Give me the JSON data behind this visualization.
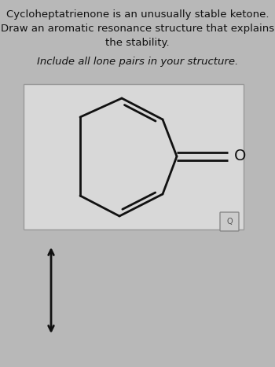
{
  "title_line1": "Cycloheptatrienone is an unusually stable ketone.",
  "title_line2": "Draw an aromatic resonance structure that explains",
  "title_line3": "the stability.",
  "subtitle": "Include all lone pairs in your structure.",
  "bg_color": "#b8b8b8",
  "box_bg": "#d8d8d8",
  "box_edge": "#999999",
  "text_color": "#111111",
  "ring_color": "#111111",
  "ring_lw": 2.0,
  "font_size_title": 9.5,
  "font_size_sub": 9.5,
  "arrow_color": "#111111"
}
